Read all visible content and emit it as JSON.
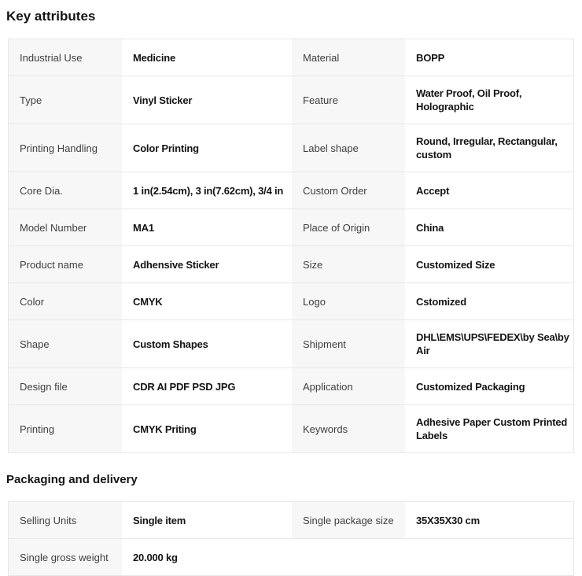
{
  "colors": {
    "label_bg": "#f7f7f7",
    "border": "#e7e7e7",
    "label_text": "#3f3f3f",
    "value_text": "#141414",
    "heading_text": "#141414",
    "page_bg": "#ffffff"
  },
  "sections": [
    {
      "title": "Key attributes",
      "rows": [
        [
          {
            "label": "Industrial Use",
            "value": "Medicine"
          },
          {
            "label": "Material",
            "value": "BOPP"
          }
        ],
        [
          {
            "label": "Type",
            "value": "Vinyl Sticker"
          },
          {
            "label": "Feature",
            "value": "Water Proof, Oil Proof, Holographic"
          }
        ],
        [
          {
            "label": "Printing Handling",
            "value": "Color Printing"
          },
          {
            "label": "Label shape",
            "value": "Round, Irregular, Rectangular, custom"
          }
        ],
        [
          {
            "label": "Core Dia.",
            "value": "1 in(2.54cm), 3 in(7.62cm), 3/4 in"
          },
          {
            "label": "Custom Order",
            "value": "Accept"
          }
        ],
        [
          {
            "label": "Model Number",
            "value": "MA1"
          },
          {
            "label": "Place of Origin",
            "value": "China"
          }
        ],
        [
          {
            "label": "Product name",
            "value": "Adhensive Sticker"
          },
          {
            "label": "Size",
            "value": "Customized Size"
          }
        ],
        [
          {
            "label": "Color",
            "value": "CMYK"
          },
          {
            "label": "Logo",
            "value": "Cstomized"
          }
        ],
        [
          {
            "label": "Shape",
            "value": "Custom Shapes"
          },
          {
            "label": "Shipment",
            "value": "DHL\\EMS\\UPS\\FEDEX\\by Sea\\by Air"
          }
        ],
        [
          {
            "label": "Design file",
            "value": "CDR AI PDF PSD JPG"
          },
          {
            "label": "Application",
            "value": "Customized Packaging"
          }
        ],
        [
          {
            "label": "Printing",
            "value": "CMYK Priting"
          },
          {
            "label": "Keywords",
            "value": "Adhesive Paper Custom Printed Labels"
          }
        ]
      ]
    },
    {
      "title": "Packaging and delivery",
      "rows": [
        [
          {
            "label": "Selling Units",
            "value": "Single item"
          },
          {
            "label": "Single package size",
            "value": "35X35X30 cm"
          }
        ],
        [
          {
            "label": "Single gross weight",
            "value": "20.000 kg"
          },
          null
        ]
      ]
    }
  ]
}
